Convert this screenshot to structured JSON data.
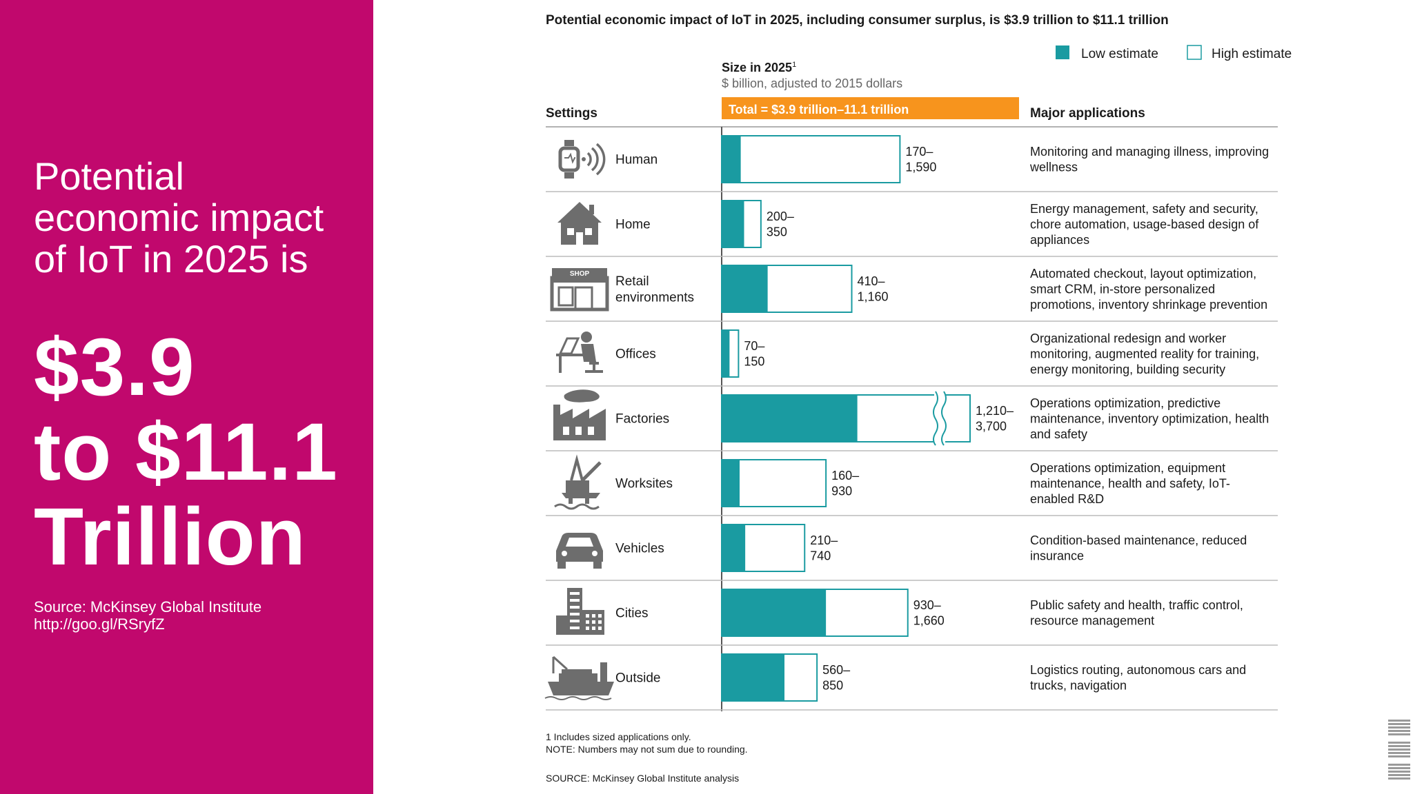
{
  "left": {
    "heading_lines": [
      "Potential",
      "economic impact",
      "of IoT in 2025 is"
    ],
    "amount_lines": [
      "$3.9",
      "to $11.1",
      "Trillion"
    ],
    "source_lines": [
      "Source: McKinsey Global Institute",
      "http://goo.gl/RSryfZ"
    ]
  },
  "chart_data": {
    "type": "bar",
    "title": "Potential economic impact of IoT in 2025, including consumer surplus, is $3.9 trillion to $11.1 trillion",
    "size_label": "Size in 2025",
    "size_footnote_mark": "1",
    "size_unit": "$ billion, adjusted to 2015 dollars",
    "total_label": "Total = $3.9 trillion–11.1 trillion",
    "settings_header": "Settings",
    "applications_header": "Major applications",
    "legend": [
      {
        "name": "Low estimate",
        "color": "#1a9ba1",
        "filled": true
      },
      {
        "name": "High estimate",
        "color": "#1a9ba1",
        "filled": false
      }
    ],
    "legend_position": "top-right",
    "colors": {
      "low": "#1a9ba1",
      "high_border": "#1a9ba1",
      "total_bar": "#f7941d",
      "icon": "#6d6d6d"
    },
    "rows": [
      {
        "setting": [
          "Human"
        ],
        "icon": "smartwatch-icon",
        "low": 170,
        "high": 1590,
        "label": [
          "170–",
          "1,590"
        ],
        "applications": [
          "Monitoring and managing illness, improving",
          "wellness"
        ]
      },
      {
        "setting": [
          "Home"
        ],
        "icon": "house-icon",
        "low": 200,
        "high": 350,
        "label": [
          "200–",
          "350"
        ],
        "applications": [
          "Energy management, safety and security,",
          "chore automation, usage-based design of",
          "appliances"
        ]
      },
      {
        "setting": [
          "Retail",
          "environments"
        ],
        "icon": "shop-icon",
        "icon_text": "SHOP",
        "low": 410,
        "high": 1160,
        "label": [
          "410–",
          "1,160"
        ],
        "applications": [
          "Automated checkout, layout optimization,",
          "smart CRM, in-store personalized",
          "promotions, inventory shrinkage prevention"
        ]
      },
      {
        "setting": [
          "Offices"
        ],
        "icon": "office-worker-icon",
        "low": 70,
        "high": 150,
        "label": [
          "70–",
          "150"
        ],
        "applications": [
          "Organizational redesign and worker",
          "monitoring, augmented reality for training,",
          "energy monitoring, building security"
        ]
      },
      {
        "setting": [
          "Factories"
        ],
        "icon": "factory-icon",
        "low": 1210,
        "high": 3700,
        "truncated": true,
        "label": [
          "1,210–",
          "3,700"
        ],
        "applications": [
          "Operations optimization, predictive",
          "maintenance, inventory optimization, health",
          "and safety"
        ]
      },
      {
        "setting": [
          "Worksites"
        ],
        "icon": "oil-rig-icon",
        "low": 160,
        "high": 930,
        "label": [
          "160–",
          "930"
        ],
        "applications": [
          "Operations optimization, equipment",
          "maintenance, health and safety, IoT-",
          "enabled R&D"
        ]
      },
      {
        "setting": [
          "Vehicles"
        ],
        "icon": "car-icon",
        "low": 210,
        "high": 740,
        "label": [
          "210–",
          "740"
        ],
        "applications": [
          "Condition-based maintenance, reduced",
          "insurance"
        ]
      },
      {
        "setting": [
          "Cities"
        ],
        "icon": "city-buildings-icon",
        "low": 930,
        "high": 1660,
        "label": [
          "930–",
          "1,660"
        ],
        "applications": [
          "Public safety and health, traffic control,",
          "resource management"
        ]
      },
      {
        "setting": [
          "Outside"
        ],
        "icon": "cargo-ship-icon",
        "low": 560,
        "high": 850,
        "label": [
          "560–",
          "850"
        ],
        "applications": [
          "Logistics routing, autonomous cars and",
          "trucks, navigation"
        ]
      }
    ],
    "footnotes": [
      "1   Includes sized applications only.",
      "NOTE: Numbers may not sum due to rounding."
    ],
    "source": "SOURCE:  McKinsey Global Institute analysis"
  },
  "ibm_logo": "IBM"
}
